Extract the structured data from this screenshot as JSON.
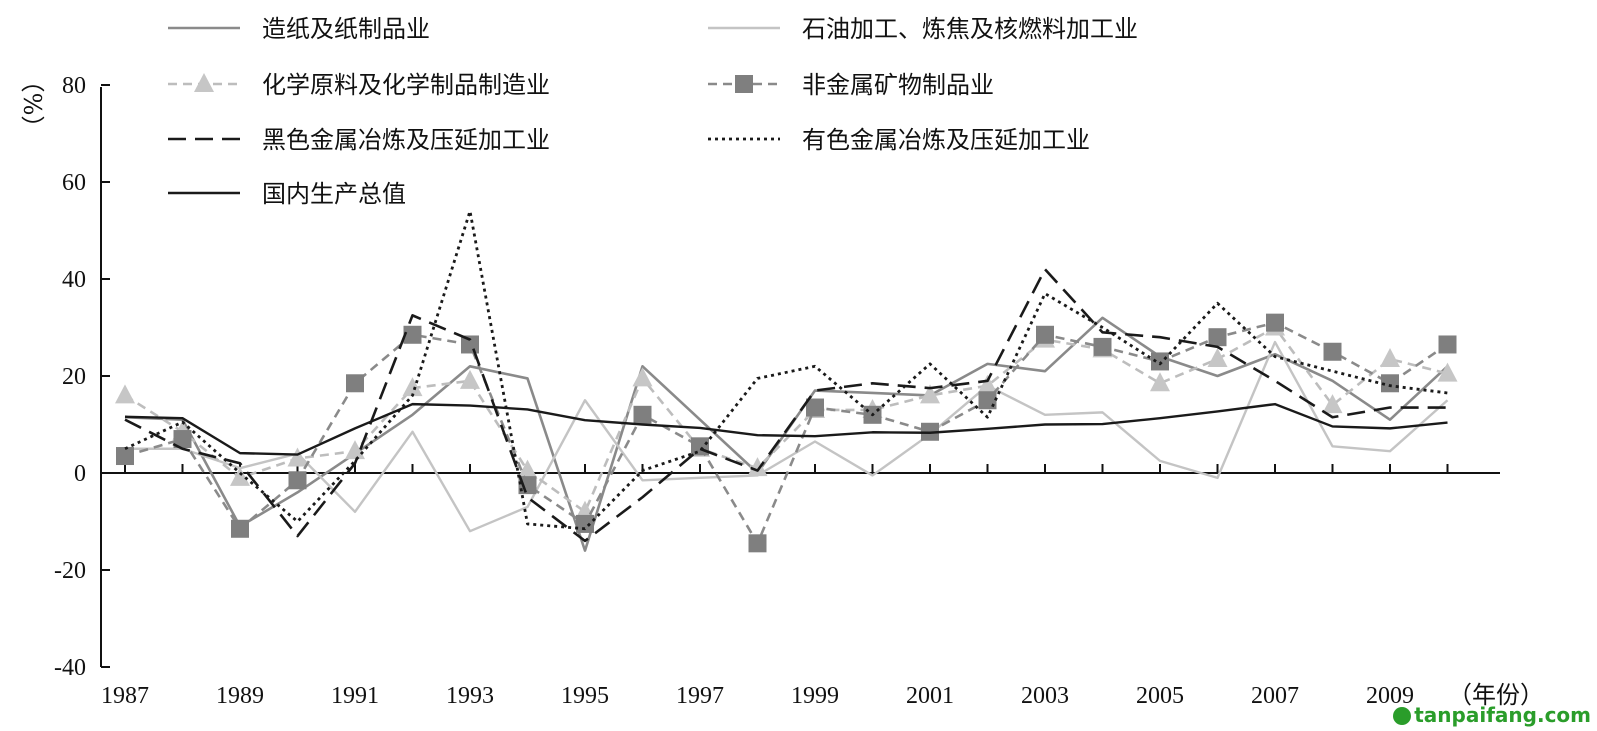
{
  "chart_data": {
    "type": "line",
    "title": "",
    "xlabel": "（年份）",
    "ylabel": "（%）",
    "ylim": [
      -40,
      80
    ],
    "y_ticks": [
      -40,
      -20,
      0,
      20,
      40,
      60,
      80
    ],
    "x_ticks": [
      1987,
      1989,
      1991,
      1993,
      1995,
      1997,
      1999,
      2001,
      2003,
      2005,
      2007,
      2009
    ],
    "x": [
      1987,
      1988,
      1989,
      1990,
      1991,
      1992,
      1993,
      1994,
      1995,
      1996,
      1997,
      1998,
      1999,
      2000,
      2001,
      2002,
      2003,
      2004,
      2005,
      2006,
      2007,
      2008,
      2009,
      2010
    ],
    "grid": false,
    "legend_position": "top",
    "series": [
      {
        "name": "造纸及纸制品业",
        "style": "solid-mid-gray",
        "values": [
          11.5,
          11,
          -11,
          -4,
          4,
          12,
          22,
          19.5,
          -16,
          22,
          11,
          0,
          17,
          16.5,
          16,
          22.5,
          21,
          32,
          24,
          20,
          24.5,
          19,
          11,
          22
        ]
      },
      {
        "name": "石油加工、炼焦及核燃料加工业",
        "style": "solid-light-gray",
        "values": [
          5,
          5,
          1,
          4,
          -8,
          8.5,
          -12,
          -7,
          15,
          -1.5,
          -1,
          -0.5,
          6.5,
          -0.5,
          8,
          18,
          12,
          12.5,
          2.5,
          -1,
          27,
          5.5,
          4.5,
          15
        ]
      },
      {
        "name": "化学原料及化学制品制造业",
        "style": "dashed-light-gray-triangle",
        "values": [
          16,
          8.5,
          -1,
          3,
          4.5,
          17.5,
          19,
          0.5,
          -8,
          19.5,
          5,
          1,
          13,
          13,
          16,
          18,
          27.5,
          25.5,
          18.5,
          23.5,
          30,
          14,
          23.5,
          20.5
        ]
      },
      {
        "name": "非金属矿物制品业",
        "style": "dashed-gray-square",
        "values": [
          3.5,
          7,
          -11.5,
          -1.5,
          18.5,
          28.5,
          26.5,
          -2.5,
          -10.5,
          12,
          5.5,
          -14.5,
          13.5,
          12,
          8.5,
          15,
          28.5,
          26,
          23,
          28,
          31,
          25,
          18.5,
          26.5
        ]
      },
      {
        "name": "黑色金属冶炼及压延加工业",
        "style": "long-dash-black",
        "values": [
          11,
          5,
          2,
          -13,
          2,
          32.5,
          27.5,
          -5,
          -14,
          -5,
          5,
          0.5,
          17,
          18.5,
          17.5,
          19,
          42,
          29,
          28,
          26,
          19,
          11.5,
          13.5,
          13.5
        ]
      },
      {
        "name": "有色金属冶炼及压延加工业",
        "style": "dotted-black",
        "values": [
          5,
          10.5,
          0,
          -10,
          2.5,
          16,
          54,
          -10.5,
          -11.5,
          0.5,
          4.5,
          19.5,
          22,
          12,
          22.5,
          11.5,
          37,
          30,
          22.5,
          35,
          24,
          21,
          18,
          16.5
        ]
      },
      {
        "name": "国内生产总值",
        "style": "solid-black",
        "values": [
          11.6,
          11.3,
          4.1,
          3.8,
          9.2,
          14.2,
          13.9,
          13.1,
          10.9,
          10,
          9.3,
          7.8,
          7.6,
          8.4,
          8.3,
          9.1,
          10,
          10.1,
          11.3,
          12.7,
          14.2,
          9.6,
          9.2,
          10.4
        ]
      }
    ]
  },
  "watermark": "tanpaifang.com"
}
